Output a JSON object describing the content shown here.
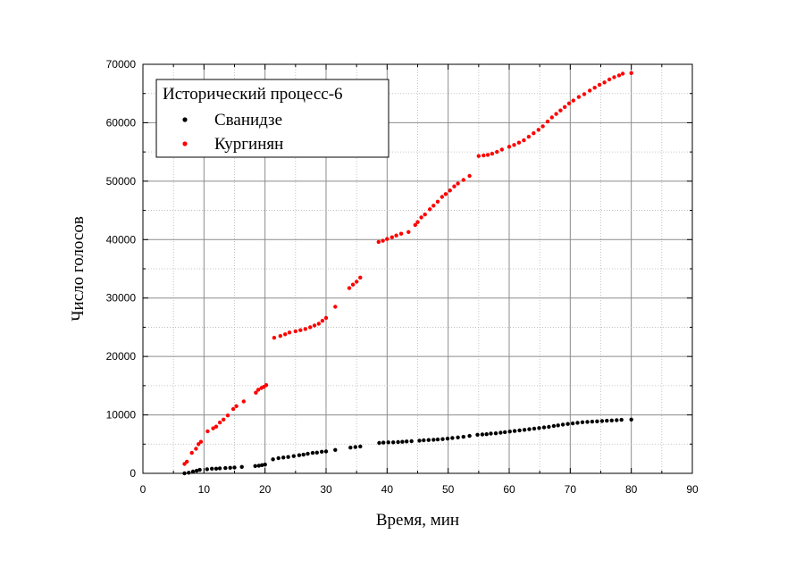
{
  "chart_data": {
    "type": "scatter",
    "legend_title": "Исторический процесс-6",
    "legend_position": "top-left",
    "xlabel": "Время, мин",
    "ylabel": "Число голосов",
    "xlim": [
      0,
      90
    ],
    "ylim": [
      0,
      70000
    ],
    "x_ticks": [
      "0",
      "10",
      "20",
      "30",
      "40",
      "50",
      "60",
      "70",
      "80",
      "90"
    ],
    "y_ticks": [
      "0",
      "10000",
      "20000",
      "30000",
      "40000",
      "50000",
      "60000",
      "70000"
    ],
    "grid": "major solid, minor dotted",
    "series": [
      {
        "name": "Сванидзе",
        "color": "#000000",
        "points": [
          [
            6.8,
            0
          ],
          [
            7.5,
            100
          ],
          [
            8.2,
            300
          ],
          [
            8.8,
            450
          ],
          [
            9.3,
            600
          ],
          [
            10.5,
            700
          ],
          [
            11.3,
            800
          ],
          [
            12.0,
            800
          ],
          [
            12.6,
            850
          ],
          [
            13.5,
            900
          ],
          [
            14.3,
            950
          ],
          [
            15.0,
            1000
          ],
          [
            16.2,
            1100
          ],
          [
            18.4,
            1250
          ],
          [
            19.0,
            1300
          ],
          [
            19.5,
            1400
          ],
          [
            20.0,
            1500
          ],
          [
            21.3,
            2400
          ],
          [
            22.2,
            2600
          ],
          [
            23.0,
            2700
          ],
          [
            23.8,
            2800
          ],
          [
            24.7,
            2950
          ],
          [
            25.6,
            3100
          ],
          [
            26.3,
            3200
          ],
          [
            27.0,
            3350
          ],
          [
            27.8,
            3500
          ],
          [
            28.5,
            3550
          ],
          [
            29.3,
            3700
          ],
          [
            30.0,
            3750
          ],
          [
            31.5,
            4000
          ],
          [
            34.0,
            4400
          ],
          [
            34.8,
            4500
          ],
          [
            35.6,
            4600
          ],
          [
            38.7,
            5200
          ],
          [
            39.4,
            5250
          ],
          [
            40.2,
            5300
          ],
          [
            41.0,
            5300
          ],
          [
            41.8,
            5350
          ],
          [
            42.5,
            5400
          ],
          [
            43.2,
            5450
          ],
          [
            44.0,
            5500
          ],
          [
            45.3,
            5600
          ],
          [
            46.0,
            5650
          ],
          [
            46.8,
            5700
          ],
          [
            47.6,
            5750
          ],
          [
            48.3,
            5800
          ],
          [
            49.1,
            5850
          ],
          [
            49.9,
            5950
          ],
          [
            50.7,
            6050
          ],
          [
            51.6,
            6150
          ],
          [
            52.5,
            6250
          ],
          [
            53.5,
            6400
          ],
          [
            54.8,
            6600
          ],
          [
            55.6,
            6650
          ],
          [
            56.3,
            6700
          ],
          [
            57.0,
            6800
          ],
          [
            57.8,
            6850
          ],
          [
            58.6,
            6950
          ],
          [
            59.3,
            7050
          ],
          [
            60.1,
            7150
          ],
          [
            60.9,
            7250
          ],
          [
            61.7,
            7350
          ],
          [
            62.5,
            7450
          ],
          [
            63.3,
            7550
          ],
          [
            64.1,
            7650
          ],
          [
            64.9,
            7750
          ],
          [
            65.7,
            7850
          ],
          [
            66.5,
            7950
          ],
          [
            67.3,
            8100
          ],
          [
            68.0,
            8200
          ],
          [
            68.8,
            8350
          ],
          [
            69.6,
            8450
          ],
          [
            70.4,
            8550
          ],
          [
            71.2,
            8650
          ],
          [
            72.0,
            8750
          ],
          [
            72.8,
            8800
          ],
          [
            73.6,
            8850
          ],
          [
            74.4,
            8900
          ],
          [
            75.2,
            8950
          ],
          [
            76.0,
            9000
          ],
          [
            76.8,
            9050
          ],
          [
            77.6,
            9100
          ],
          [
            78.4,
            9150
          ],
          [
            80.0,
            9200
          ]
        ]
      },
      {
        "name": "Кургинян",
        "color": "#ff0000",
        "points": [
          [
            6.8,
            1600
          ],
          [
            7.2,
            2000
          ],
          [
            8.0,
            3500
          ],
          [
            8.7,
            4200
          ],
          [
            9.1,
            5000
          ],
          [
            9.5,
            5400
          ],
          [
            10.6,
            7200
          ],
          [
            11.5,
            7700
          ],
          [
            12.0,
            8000
          ],
          [
            12.6,
            8700
          ],
          [
            13.2,
            9200
          ],
          [
            13.9,
            9900
          ],
          [
            14.8,
            11000
          ],
          [
            15.3,
            11500
          ],
          [
            16.5,
            12300
          ],
          [
            18.5,
            13800
          ],
          [
            18.9,
            14300
          ],
          [
            19.4,
            14600
          ],
          [
            19.8,
            14800
          ],
          [
            20.2,
            15100
          ],
          [
            21.5,
            23200
          ],
          [
            22.5,
            23500
          ],
          [
            23.3,
            23800
          ],
          [
            24.0,
            24100
          ],
          [
            25.0,
            24300
          ],
          [
            25.8,
            24500
          ],
          [
            26.6,
            24700
          ],
          [
            27.4,
            25000
          ],
          [
            28.1,
            25300
          ],
          [
            28.8,
            25600
          ],
          [
            29.4,
            26100
          ],
          [
            30.0,
            26600
          ],
          [
            31.5,
            28500
          ],
          [
            33.8,
            31700
          ],
          [
            34.4,
            32300
          ],
          [
            35.0,
            32800
          ],
          [
            35.6,
            33500
          ],
          [
            38.6,
            39600
          ],
          [
            39.3,
            39800
          ],
          [
            40.0,
            40100
          ],
          [
            40.8,
            40400
          ],
          [
            41.5,
            40700
          ],
          [
            42.3,
            41000
          ],
          [
            43.5,
            41300
          ],
          [
            44.6,
            42500
          ],
          [
            45.0,
            43000
          ],
          [
            45.6,
            43800
          ],
          [
            46.2,
            44300
          ],
          [
            47.0,
            45200
          ],
          [
            47.6,
            45800
          ],
          [
            48.3,
            46500
          ],
          [
            49.0,
            47300
          ],
          [
            49.6,
            47800
          ],
          [
            50.3,
            48400
          ],
          [
            51.0,
            49100
          ],
          [
            51.6,
            49600
          ],
          [
            52.5,
            50200
          ],
          [
            53.5,
            50900
          ],
          [
            55.0,
            54300
          ],
          [
            55.8,
            54400
          ],
          [
            56.5,
            54500
          ],
          [
            57.2,
            54700
          ],
          [
            58.0,
            55000
          ],
          [
            58.8,
            55400
          ],
          [
            60.0,
            55900
          ],
          [
            60.8,
            56200
          ],
          [
            61.6,
            56600
          ],
          [
            62.4,
            57000
          ],
          [
            63.2,
            57600
          ],
          [
            64.0,
            58200
          ],
          [
            64.8,
            58800
          ],
          [
            65.5,
            59400
          ],
          [
            66.3,
            60200
          ],
          [
            67.0,
            60900
          ],
          [
            67.7,
            61500
          ],
          [
            68.4,
            62100
          ],
          [
            69.1,
            62700
          ],
          [
            69.8,
            63300
          ],
          [
            70.5,
            63800
          ],
          [
            71.4,
            64400
          ],
          [
            72.3,
            64900
          ],
          [
            73.2,
            65500
          ],
          [
            74.0,
            66000
          ],
          [
            74.8,
            66500
          ],
          [
            75.6,
            66900
          ],
          [
            76.4,
            67400
          ],
          [
            77.2,
            67800
          ],
          [
            78.0,
            68100
          ],
          [
            78.6,
            68400
          ],
          [
            80.0,
            68500
          ]
        ]
      }
    ]
  }
}
